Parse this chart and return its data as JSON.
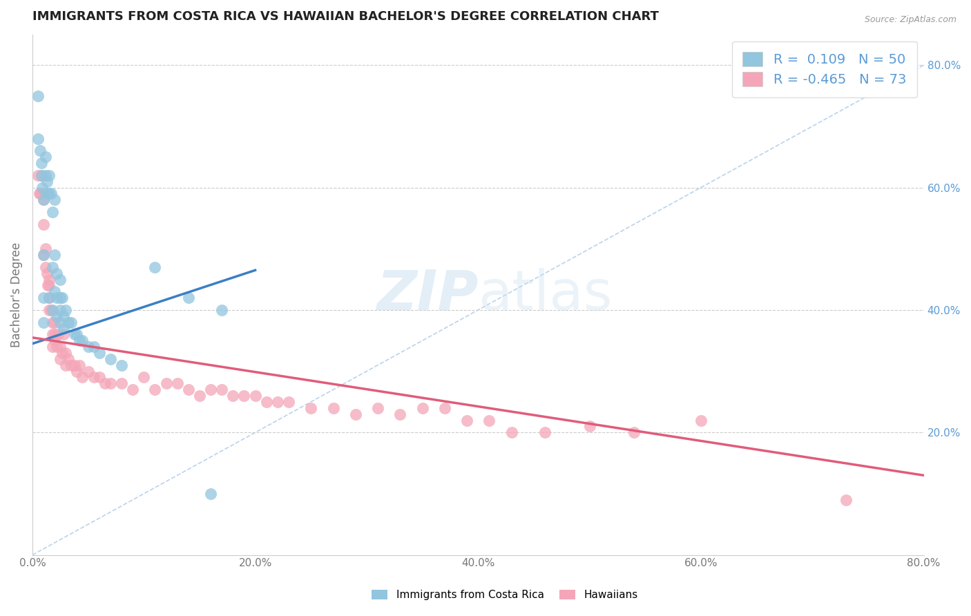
{
  "title": "IMMIGRANTS FROM COSTA RICA VS HAWAIIAN BACHELOR'S DEGREE CORRELATION CHART",
  "source": "Source: ZipAtlas.com",
  "ylabel": "Bachelor's Degree",
  "xlim": [
    0.0,
    0.8
  ],
  "ylim": [
    0.0,
    0.85
  ],
  "right_yticks": [
    0.2,
    0.4,
    0.6,
    0.8
  ],
  "right_yticklabels": [
    "20.0%",
    "40.0%",
    "60.0%",
    "80.0%"
  ],
  "xticks": [
    0.0,
    0.2,
    0.4,
    0.6,
    0.8
  ],
  "xticklabels": [
    "0.0%",
    "20.0%",
    "40.0%",
    "60.0%",
    "80.0%"
  ],
  "blue_R": 0.109,
  "blue_N": 50,
  "pink_R": -0.465,
  "pink_N": 73,
  "blue_color": "#92c5de",
  "pink_color": "#f4a6b8",
  "blue_line_color": "#3b7fc4",
  "pink_line_color": "#e05c7a",
  "dashed_line_color": "#a8c8e8",
  "watermark_color": "#c8dff0",
  "blue_scatter_x": [
    0.005,
    0.005,
    0.007,
    0.008,
    0.008,
    0.009,
    0.01,
    0.01,
    0.01,
    0.01,
    0.012,
    0.012,
    0.013,
    0.013,
    0.015,
    0.015,
    0.015,
    0.017,
    0.018,
    0.018,
    0.018,
    0.02,
    0.02,
    0.02,
    0.022,
    0.022,
    0.022,
    0.025,
    0.025,
    0.025,
    0.025,
    0.027,
    0.028,
    0.028,
    0.03,
    0.032,
    0.035,
    0.038,
    0.04,
    0.042,
    0.045,
    0.05,
    0.055,
    0.06,
    0.07,
    0.08,
    0.11,
    0.14,
    0.16,
    0.17
  ],
  "blue_scatter_y": [
    0.75,
    0.68,
    0.66,
    0.64,
    0.62,
    0.6,
    0.58,
    0.49,
    0.42,
    0.38,
    0.65,
    0.62,
    0.61,
    0.59,
    0.62,
    0.59,
    0.42,
    0.59,
    0.56,
    0.47,
    0.4,
    0.58,
    0.49,
    0.43,
    0.46,
    0.42,
    0.39,
    0.45,
    0.42,
    0.4,
    0.38,
    0.42,
    0.39,
    0.37,
    0.4,
    0.38,
    0.38,
    0.36,
    0.36,
    0.35,
    0.35,
    0.34,
    0.34,
    0.33,
    0.32,
    0.31,
    0.47,
    0.42,
    0.1,
    0.4
  ],
  "pink_scatter_x": [
    0.005,
    0.006,
    0.007,
    0.008,
    0.009,
    0.01,
    0.01,
    0.01,
    0.012,
    0.012,
    0.013,
    0.014,
    0.015,
    0.015,
    0.015,
    0.015,
    0.017,
    0.018,
    0.018,
    0.018,
    0.02,
    0.02,
    0.02,
    0.022,
    0.023,
    0.025,
    0.025,
    0.027,
    0.028,
    0.03,
    0.03,
    0.032,
    0.035,
    0.038,
    0.04,
    0.042,
    0.045,
    0.05,
    0.055,
    0.06,
    0.065,
    0.07,
    0.08,
    0.09,
    0.1,
    0.11,
    0.12,
    0.13,
    0.14,
    0.15,
    0.16,
    0.17,
    0.18,
    0.19,
    0.2,
    0.21,
    0.22,
    0.23,
    0.25,
    0.27,
    0.29,
    0.31,
    0.33,
    0.35,
    0.37,
    0.39,
    0.41,
    0.43,
    0.46,
    0.5,
    0.54,
    0.6,
    0.73
  ],
  "pink_scatter_y": [
    0.62,
    0.59,
    0.59,
    0.62,
    0.59,
    0.58,
    0.54,
    0.49,
    0.5,
    0.47,
    0.46,
    0.44,
    0.45,
    0.44,
    0.42,
    0.4,
    0.4,
    0.38,
    0.36,
    0.34,
    0.38,
    0.36,
    0.35,
    0.34,
    0.36,
    0.34,
    0.32,
    0.33,
    0.36,
    0.33,
    0.31,
    0.32,
    0.31,
    0.31,
    0.3,
    0.31,
    0.29,
    0.3,
    0.29,
    0.29,
    0.28,
    0.28,
    0.28,
    0.27,
    0.29,
    0.27,
    0.28,
    0.28,
    0.27,
    0.26,
    0.27,
    0.27,
    0.26,
    0.26,
    0.26,
    0.25,
    0.25,
    0.25,
    0.24,
    0.24,
    0.23,
    0.24,
    0.23,
    0.24,
    0.24,
    0.22,
    0.22,
    0.2,
    0.2,
    0.21,
    0.2,
    0.22,
    0.09
  ],
  "blue_trend_x": [
    0.0,
    0.2
  ],
  "blue_trend_y_start": 0.345,
  "blue_trend_y_end": 0.465,
  "pink_trend_x": [
    0.0,
    0.8
  ],
  "pink_trend_y_start": 0.355,
  "pink_trend_y_end": 0.13,
  "diag_line_x": [
    0.0,
    0.8
  ],
  "diag_line_y": [
    0.0,
    0.8
  ]
}
